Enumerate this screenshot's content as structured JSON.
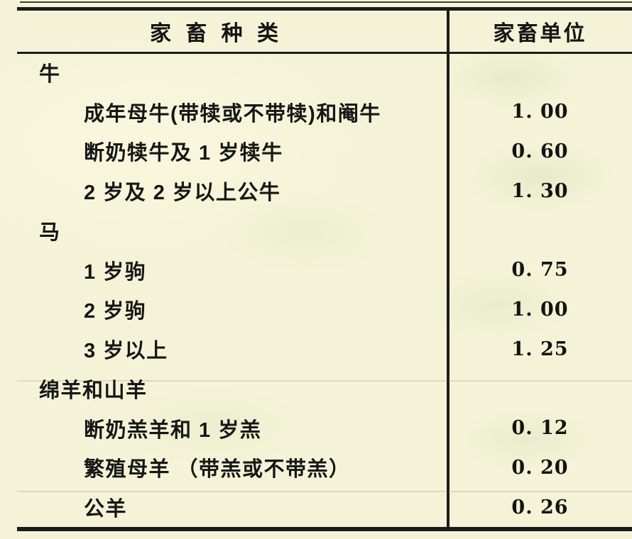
{
  "page": {
    "background_color": "#f5f3d7",
    "rule_color": "#1b1b1b"
  },
  "table": {
    "header": {
      "col1": "家 畜 种 类",
      "col2": "家畜单位"
    },
    "rows": [
      {
        "label": "牛",
        "value": "",
        "kind": "group"
      },
      {
        "label": "成年母牛(带犊或不带犊)和阉牛",
        "value": "1. 00",
        "kind": "item"
      },
      {
        "label": "断奶犊牛及 1 岁犊牛",
        "value": "0. 60",
        "kind": "item"
      },
      {
        "label": "2 岁及 2 岁以上公牛",
        "value": "1. 30",
        "kind": "item"
      },
      {
        "label": "马",
        "value": "",
        "kind": "group"
      },
      {
        "label": "1 岁驹",
        "value": "0. 75",
        "kind": "item"
      },
      {
        "label": "2 岁驹",
        "value": "1. 00",
        "kind": "item"
      },
      {
        "label": "3 岁以上",
        "value": "1. 25",
        "kind": "item"
      },
      {
        "label": "绵羊和山羊",
        "value": "",
        "kind": "group"
      },
      {
        "label": "断奶羔羊和 1 岁羔",
        "value": "0. 12",
        "kind": "item"
      },
      {
        "label": "繁殖母羊 （带羔或不带羔）",
        "value": "0. 20",
        "kind": "item"
      },
      {
        "label": "公羊",
        "value": "0. 26",
        "kind": "item"
      }
    ]
  }
}
